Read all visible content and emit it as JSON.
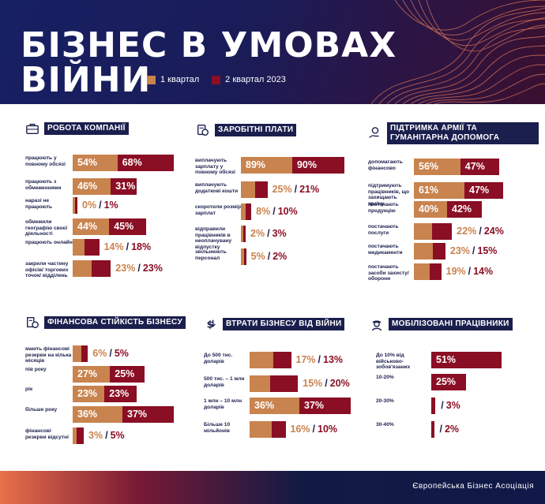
{
  "header": {
    "title_line1": "БІЗНЕС В УМОВАХ",
    "title_line2": "ВІЙНИ",
    "legend_q1": "1 квартал",
    "legend_q2": "2 квартал 2023"
  },
  "colors": {
    "q1": "#c9834e",
    "q2": "#8a0e24",
    "navy": "#1b1f4d"
  },
  "footer": {
    "brand": "Європейська Бізнес Асоціація"
  },
  "chart_data": [
    {
      "type": "bar",
      "title": "РОБОТА КОМПАНІЇ",
      "icon": "briefcase-icon",
      "categories": [
        "працюють у повному обсязі",
        "працюють з обмеженнями",
        "наразі не працюють",
        "обмежили географію своєї діяльності",
        "працюють онлайн",
        "закрили частину офісів/ торгових точок/ відділень"
      ],
      "series": [
        {
          "name": "1 квартал",
          "values": [
            54,
            46,
            0,
            44,
            14,
            23
          ]
        },
        {
          "name": "2 квартал 2023",
          "values": [
            68,
            31,
            1,
            45,
            18,
            23
          ]
        }
      ],
      "labels": [
        [
          "54%",
          "68%"
        ],
        [
          "46%",
          "31%"
        ],
        [
          "0%",
          "1%"
        ],
        [
          "44%",
          "45%"
        ],
        [
          "14%",
          "18%"
        ],
        [
          "23%",
          "23%"
        ]
      ]
    },
    {
      "type": "bar",
      "title": "ЗАРОБІТНІ ПЛАТИ",
      "icon": "salary-icon",
      "categories": [
        "виплачують зарплату у повному обсязі",
        "виплачують додаткові кошти",
        "скоротили розмір зарплат",
        "відправили працівників в неоплачувану відпустку",
        "звільнюють персонал"
      ],
      "series": [
        {
          "name": "1 квартал",
          "values": [
            89,
            25,
            8,
            2,
            5
          ]
        },
        {
          "name": "2 квартал 2023",
          "values": [
            90,
            21,
            10,
            3,
            2
          ]
        }
      ],
      "labels": [
        [
          "89%",
          "90%"
        ],
        [
          "25%",
          "21%"
        ],
        [
          "8%",
          "10%"
        ],
        [
          "2%",
          "3%"
        ],
        [
          "5%",
          "2%"
        ]
      ]
    },
    {
      "type": "bar",
      "title": "ПІДТРИМКА АРМІЇ ТА ГУМАНІТАРНА ДОПОМОГА",
      "icon": "helping-hand-icon",
      "categories": [
        "допомагають фінансово",
        "підтримують працівників, що захищають країну",
        "постачають продукцію",
        "постачають послуги",
        "постачають медикаменти",
        "постачають засоби захисту/ оборони"
      ],
      "series": [
        {
          "name": "1 квартал",
          "values": [
            56,
            61,
            40,
            22,
            23,
            19
          ]
        },
        {
          "name": "2 квартал 2023",
          "values": [
            47,
            47,
            42,
            24,
            15,
            14
          ]
        }
      ],
      "labels": [
        [
          "56%",
          "47%"
        ],
        [
          "61%",
          "47%"
        ],
        [
          "40%",
          "42%"
        ],
        [
          "22%",
          "24%"
        ],
        [
          "23%",
          "15%"
        ],
        [
          "19%",
          "14%"
        ]
      ]
    },
    {
      "type": "bar",
      "title": "ФІНАНСОВА СТІЙКІСТЬ БІЗНЕСУ",
      "icon": "finance-icon",
      "categories": [
        "мають фінансові резерви на кілька місяців",
        "пів року",
        "рік",
        "більше року",
        "фінансові резерви відсутні"
      ],
      "series": [
        {
          "name": "1 квартал",
          "values": [
            6,
            27,
            23,
            36,
            3
          ]
        },
        {
          "name": "2 квартал 2023",
          "values": [
            5,
            25,
            23,
            37,
            5
          ]
        }
      ],
      "labels": [
        [
          "6%",
          "5%"
        ],
        [
          "27%",
          "25%"
        ],
        [
          "23%",
          "23%"
        ],
        [
          "36%",
          "37%"
        ],
        [
          "3%",
          "5%"
        ]
      ]
    },
    {
      "type": "bar",
      "title": "ВТРАТИ БІЗНЕСУ ВІД ВІЙНИ",
      "icon": "money-loss-icon",
      "categories": [
        "До 500 тис. доларів",
        "500 тис. – 1 млн доларів",
        "1 млн – 10 млн доларів",
        "Більше 10 мільйонів"
      ],
      "series": [
        {
          "name": "1 квартал",
          "values": [
            17,
            15,
            36,
            16
          ]
        },
        {
          "name": "2 квартал 2023",
          "values": [
            13,
            20,
            37,
            10
          ]
        }
      ],
      "labels": [
        [
          "17%",
          "13%"
        ],
        [
          "15%",
          "20%"
        ],
        [
          "36%",
          "37%"
        ],
        [
          "16%",
          "10%"
        ]
      ]
    },
    {
      "type": "bar",
      "title": "МОБІЛІЗОВАНІ ПРАЦІВНИКИ",
      "icon": "soldier-icon",
      "categories": [
        "До 10% від військово-зобов'язаних",
        "10-20%",
        "20-30%",
        "30-40%"
      ],
      "series": [
        {
          "name": "2 квартал 2023",
          "values": [
            51,
            25,
            3,
            2
          ]
        }
      ],
      "labels": [
        [
          "51%"
        ],
        [
          "25%"
        ],
        [
          "3%"
        ],
        [
          "2%"
        ]
      ]
    }
  ]
}
